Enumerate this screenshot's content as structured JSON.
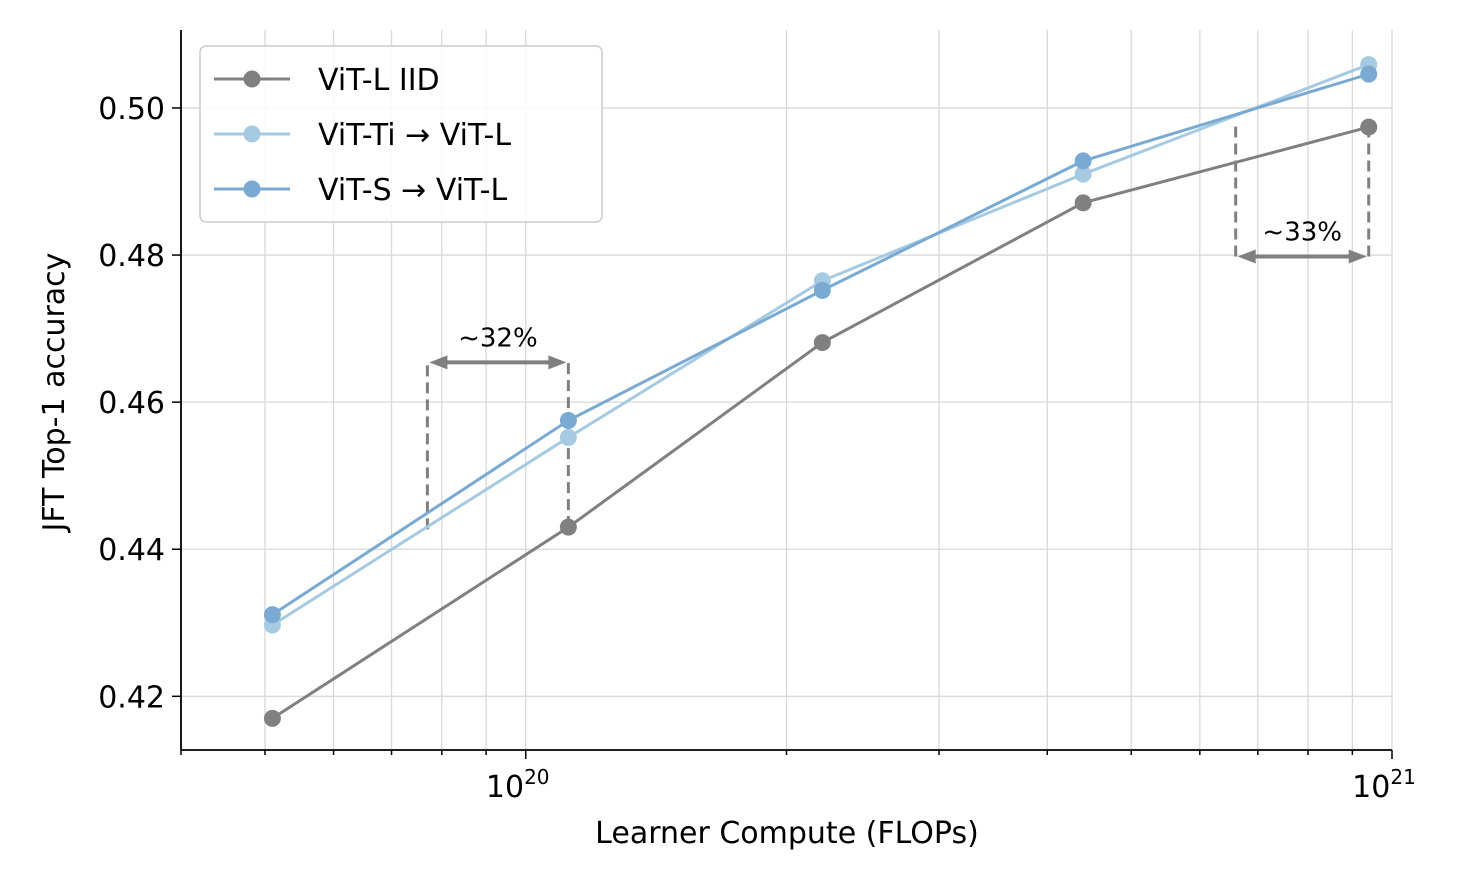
{
  "chart_data": {
    "type": "line",
    "xlabel": "Learner Compute (FLOPs)",
    "ylabel": "JFT Top-1 accuracy",
    "xscale": "log",
    "xlim": [
      4e+19,
      1e+21
    ],
    "ylim": [
      0.4127,
      0.5106
    ],
    "xticks": [
      {
        "base": "10",
        "exp": "20",
        "value": 1e+20
      },
      {
        "base": "10",
        "exp": "21",
        "value": 1e+21
      }
    ],
    "yticks": [
      {
        "label": "0.42",
        "value": 0.42
      },
      {
        "label": "0.44",
        "value": 0.44
      },
      {
        "label": "0.46",
        "value": 0.46
      },
      {
        "label": "0.48",
        "value": 0.48
      },
      {
        "label": "0.50",
        "value": 0.5
      }
    ],
    "grid": true,
    "legend_position": "top-left",
    "series": [
      {
        "name": "ViT-L IID",
        "color": "#808080",
        "x": [
          5.1e+19,
          1.12e+20,
          2.2e+20,
          4.4e+20,
          9.4e+20
        ],
        "y": [
          0.417,
          0.443,
          0.4681,
          0.4871,
          0.4974
        ]
      },
      {
        "name": "ViT-Ti → ViT-L",
        "color": "#a6cae2",
        "x": [
          5.1e+19,
          1.12e+20,
          2.2e+20,
          4.4e+20,
          9.4e+20
        ],
        "y": [
          0.4297,
          0.4552,
          0.4765,
          0.491,
          0.5059
        ]
      },
      {
        "name": "ViT-S → ViT-L",
        "color": "#7aaad2",
        "x": [
          5.1e+19,
          1.12e+20,
          2.2e+20,
          4.4e+20,
          9.4e+20
        ],
        "y": [
          0.4311,
          0.4575,
          0.4752,
          0.4928,
          0.5046
        ]
      }
    ],
    "annotations": [
      {
        "text": "~32%",
        "arrow_y": 0.4654,
        "x_from": 7.7e+19,
        "x_to": 1.12e+20,
        "dashed": [
          {
            "x": 7.7e+19,
            "y0": 0.4427,
            "y1": 0.4654
          },
          {
            "x": 1.12e+20,
            "y0": 0.443,
            "y1": 0.4654
          }
        ]
      },
      {
        "text": "~33%",
        "arrow_y": 0.4798,
        "x_from": 6.6e+20,
        "x_to": 9.4e+20,
        "dashed": [
          {
            "x": 6.6e+20,
            "y0": 0.4798,
            "y1": 0.4975
          },
          {
            "x": 9.4e+20,
            "y0": 0.4798,
            "y1": 0.4974
          }
        ]
      }
    ],
    "colors": {
      "annotation": "#808080",
      "grid": "#d9d9d9",
      "legend_border": "#cccccc"
    }
  }
}
